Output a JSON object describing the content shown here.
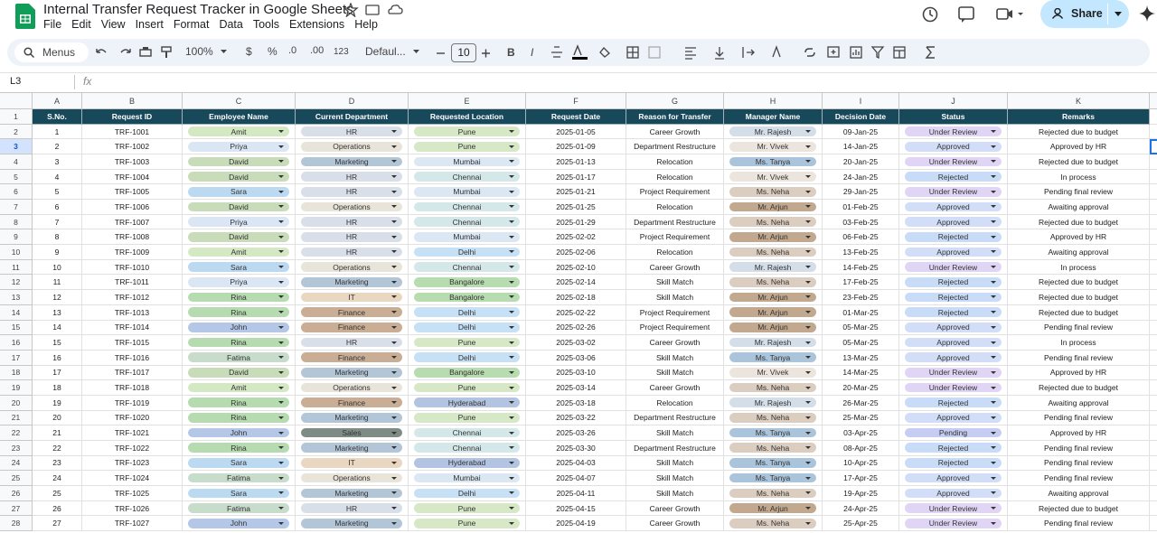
{
  "app": {
    "title": "Internal Transfer Request Tracker in Google Sheets",
    "menu": [
      "File",
      "Edit",
      "View",
      "Insert",
      "Format",
      "Data",
      "Tools",
      "Extensions",
      "Help"
    ],
    "share": "Share",
    "toolbar": {
      "search": "Menus",
      "zoom": "100%",
      "currency": "$",
      "percent": "%",
      "dec_less": ".0",
      "dec_more": ".00",
      "format": "123",
      "font": "Defaul...",
      "font_size": "10"
    },
    "name_box": "L3",
    "fx": "fx"
  },
  "sheet": {
    "column_letters": [
      "A",
      "B",
      "C",
      "D",
      "E",
      "F",
      "G",
      "H",
      "I",
      "J",
      "K"
    ],
    "row_numbers": [
      1,
      2,
      3,
      4,
      5,
      6,
      7,
      8,
      9,
      10,
      11,
      12,
      13,
      14,
      15,
      16,
      17,
      18,
      19,
      20,
      21,
      22,
      23,
      24,
      25,
      26,
      27,
      28
    ],
    "header": [
      "S.No.",
      "Request ID",
      "Employee Name",
      "Current Department",
      "Requested Location",
      "Request Date",
      "Reason for Transfer",
      "Manager Name",
      "Decision Date",
      "Status",
      "Remarks"
    ],
    "rows": [
      [
        1,
        "TRF-1001",
        "Amit",
        "HR",
        "Pune",
        "2025-01-05",
        "Career Growth",
        "Mr. Rajesh",
        "09-Jan-25",
        "Under Review",
        "Rejected due to budget"
      ],
      [
        2,
        "TRF-1002",
        "Priya",
        "Operations",
        "Pune",
        "2025-01-09",
        "Department Restructure",
        "Mr. Vivek",
        "14-Jan-25",
        "Approved",
        "Approved by HR"
      ],
      [
        3,
        "TRF-1003",
        "David",
        "Marketing",
        "Mumbai",
        "2025-01-13",
        "Relocation",
        "Ms. Tanya",
        "20-Jan-25",
        "Under Review",
        "Rejected due to budget"
      ],
      [
        4,
        "TRF-1004",
        "David",
        "HR",
        "Chennai",
        "2025-01-17",
        "Relocation",
        "Mr. Vivek",
        "24-Jan-25",
        "Rejected",
        "In process"
      ],
      [
        5,
        "TRF-1005",
        "Sara",
        "HR",
        "Mumbai",
        "2025-01-21",
        "Project Requirement",
        "Ms. Neha",
        "29-Jan-25",
        "Under Review",
        "Pending final review"
      ],
      [
        6,
        "TRF-1006",
        "David",
        "Operations",
        "Chennai",
        "2025-01-25",
        "Relocation",
        "Mr. Arjun",
        "01-Feb-25",
        "Approved",
        "Awaiting approval"
      ],
      [
        7,
        "TRF-1007",
        "Priya",
        "HR",
        "Chennai",
        "2025-01-29",
        "Department Restructure",
        "Ms. Neha",
        "03-Feb-25",
        "Approved",
        "Rejected due to budget"
      ],
      [
        8,
        "TRF-1008",
        "David",
        "HR",
        "Mumbai",
        "2025-02-02",
        "Project Requirement",
        "Mr. Arjun",
        "06-Feb-25",
        "Rejected",
        "Approved by HR"
      ],
      [
        9,
        "TRF-1009",
        "Amit",
        "HR",
        "Delhi",
        "2025-02-06",
        "Relocation",
        "Ms. Neha",
        "13-Feb-25",
        "Approved",
        "Awaiting approval"
      ],
      [
        10,
        "TRF-1010",
        "Sara",
        "Operations",
        "Chennai",
        "2025-02-10",
        "Career Growth",
        "Mr. Rajesh",
        "14-Feb-25",
        "Under Review",
        "In process"
      ],
      [
        11,
        "TRF-1011",
        "Priya",
        "Marketing",
        "Bangalore",
        "2025-02-14",
        "Skill Match",
        "Ms. Neha",
        "17-Feb-25",
        "Rejected",
        "Rejected due to budget"
      ],
      [
        12,
        "TRF-1012",
        "Rina",
        "IT",
        "Bangalore",
        "2025-02-18",
        "Skill Match",
        "Mr. Arjun",
        "23-Feb-25",
        "Rejected",
        "Rejected due to budget"
      ],
      [
        13,
        "TRF-1013",
        "Rina",
        "Finance",
        "Delhi",
        "2025-02-22",
        "Project Requirement",
        "Mr. Arjun",
        "01-Mar-25",
        "Rejected",
        "Rejected due to budget"
      ],
      [
        14,
        "TRF-1014",
        "John",
        "Finance",
        "Delhi",
        "2025-02-26",
        "Project Requirement",
        "Mr. Arjun",
        "05-Mar-25",
        "Approved",
        "Pending final review"
      ],
      [
        15,
        "TRF-1015",
        "Rina",
        "HR",
        "Pune",
        "2025-03-02",
        "Career Growth",
        "Mr. Rajesh",
        "05-Mar-25",
        "Approved",
        "In process"
      ],
      [
        16,
        "TRF-1016",
        "Fatima",
        "Finance",
        "Delhi",
        "2025-03-06",
        "Skill Match",
        "Ms. Tanya",
        "13-Mar-25",
        "Approved",
        "Pending final review"
      ],
      [
        17,
        "TRF-1017",
        "David",
        "Marketing",
        "Bangalore",
        "2025-03-10",
        "Skill Match",
        "Mr. Vivek",
        "14-Mar-25",
        "Under Review",
        "Approved by HR"
      ],
      [
        18,
        "TRF-1018",
        "Amit",
        "Operations",
        "Pune",
        "2025-03-14",
        "Career Growth",
        "Ms. Neha",
        "20-Mar-25",
        "Under Review",
        "Rejected due to budget"
      ],
      [
        19,
        "TRF-1019",
        "Rina",
        "Finance",
        "Hyderabad",
        "2025-03-18",
        "Relocation",
        "Mr. Rajesh",
        "26-Mar-25",
        "Rejected",
        "Awaiting approval"
      ],
      [
        20,
        "TRF-1020",
        "Rina",
        "Marketing",
        "Pune",
        "2025-03-22",
        "Department Restructure",
        "Ms. Neha",
        "25-Mar-25",
        "Approved",
        "Pending final review"
      ],
      [
        21,
        "TRF-1021",
        "John",
        "Sales",
        "Chennai",
        "2025-03-26",
        "Skill Match",
        "Ms. Tanya",
        "03-Apr-25",
        "Pending",
        "Approved by HR"
      ],
      [
        22,
        "TRF-1022",
        "Rina",
        "Marketing",
        "Chennai",
        "2025-03-30",
        "Department Restructure",
        "Ms. Neha",
        "08-Apr-25",
        "Rejected",
        "Pending final review"
      ],
      [
        23,
        "TRF-1023",
        "Sara",
        "IT",
        "Hyderabad",
        "2025-04-03",
        "Skill Match",
        "Ms. Tanya",
        "10-Apr-25",
        "Rejected",
        "Pending final review"
      ],
      [
        24,
        "TRF-1024",
        "Fatima",
        "Operations",
        "Mumbai",
        "2025-04-07",
        "Skill Match",
        "Ms. Tanya",
        "17-Apr-25",
        "Approved",
        "Pending final review"
      ],
      [
        25,
        "TRF-1025",
        "Sara",
        "Marketing",
        "Delhi",
        "2025-04-11",
        "Skill Match",
        "Ms. Neha",
        "19-Apr-25",
        "Approved",
        "Awaiting approval"
      ],
      [
        26,
        "TRF-1026",
        "Fatima",
        "HR",
        "Pune",
        "2025-04-15",
        "Career Growth",
        "Mr. Arjun",
        "24-Apr-25",
        "Under Review",
        "Rejected due to budget"
      ],
      [
        27,
        "TRF-1027",
        "John",
        "Marketing",
        "Pune",
        "2025-04-19",
        "Career Growth",
        "Ms. Neha",
        "25-Apr-25",
        "Under Review",
        "Pending final review"
      ]
    ],
    "chip_colors": {
      "2": {
        "Amit": "#d4e8c4",
        "Priya": "#dbe6f5",
        "David": "#c9dcb9",
        "Sara": "#bcd9f2",
        "Rina": "#b6dbb0",
        "John": "#b4c7e7",
        "Fatima": "#c8dccc"
      },
      "3": {
        "HR": "#d9dfe8",
        "Operations": "#e8e4d9",
        "Marketing": "#b3c6d8",
        "IT": "#e9d7c2",
        "Finance": "#c9ad94",
        "Sales": "#7f8c86"
      },
      "4": {
        "Pune": "#d7e8c6",
        "Mumbai": "#dbe7f3",
        "Chennai": "#d5e8e9",
        "Delhi": "#c6e0f5",
        "Bangalore": "#b7dcb0",
        "Hyderabad": "#b3c4e2"
      },
      "7": {
        "Mr. Rajesh": "#d3dee9",
        "Mr. Vivek": "#ece5dd",
        "Ms. Tanya": "#aac4dc",
        "Ms. Neha": "#dbcdbf",
        "Mr. Arjun": "#c2a88e"
      },
      "9": {
        "Under Review": "#e1d5f5",
        "Approved": "#d2def8",
        "Rejected": "#c9dcf7",
        "Pending": "#c5cdf2"
      }
    }
  }
}
